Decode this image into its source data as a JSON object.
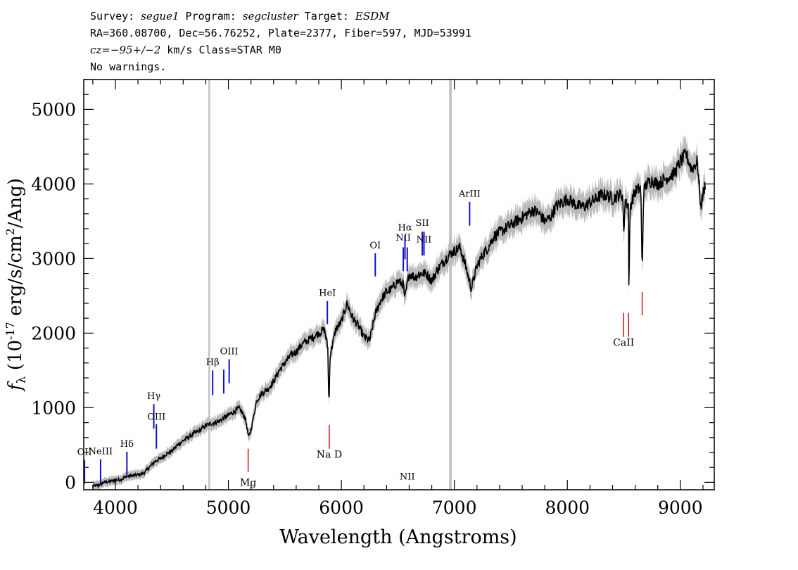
{
  "header": {
    "survey_label": "Survey:",
    "survey": "segue1",
    "program_label": "Program:",
    "program": "segcluster",
    "target_label": "Target:",
    "target": "ESDM",
    "line2": "RA=360.08700, Dec=56.76252, Plate=2377, Fiber=597, MJD=53991",
    "cz_label": "cz=",
    "cz_value": "−95+/−2",
    "cz_rest": " km/s Class=STAR M0",
    "warnings": "No warnings."
  },
  "chart_data": {
    "type": "line",
    "title": "Survey: segue1 Program: segcluster Target: ESDM",
    "xlabel": "Wavelength (Angstroms)",
    "ylabel": "f_λ (10^-17 erg/s/cm^2/Ang)",
    "xlim": [
      3720,
      9300
    ],
    "ylim": [
      -100,
      5400
    ],
    "xticks": [
      4000,
      5000,
      6000,
      7000,
      8000,
      9000
    ],
    "yticks": [
      0,
      1000,
      2000,
      3000,
      4000,
      5000
    ],
    "sky_lines": [
      4830,
      6965
    ],
    "series": [
      {
        "name": "flux",
        "color": "#000000",
        "points": [
          [
            3800,
            -50
          ],
          [
            3850,
            -40
          ],
          [
            3900,
            0
          ],
          [
            3950,
            10
          ],
          [
            4000,
            30
          ],
          [
            4050,
            40
          ],
          [
            4100,
            80
          ],
          [
            4150,
            90
          ],
          [
            4200,
            100
          ],
          [
            4250,
            120
          ],
          [
            4300,
            200
          ],
          [
            4350,
            280
          ],
          [
            4400,
            320
          ],
          [
            4450,
            380
          ],
          [
            4500,
            420
          ],
          [
            4550,
            500
          ],
          [
            4600,
            560
          ],
          [
            4650,
            610
          ],
          [
            4700,
            660
          ],
          [
            4750,
            700
          ],
          [
            4800,
            760
          ],
          [
            4850,
            790
          ],
          [
            4900,
            810
          ],
          [
            4950,
            850
          ],
          [
            5000,
            900
          ],
          [
            5050,
            950
          ],
          [
            5100,
            990
          ],
          [
            5150,
            860
          ],
          [
            5180,
            600
          ],
          [
            5200,
            700
          ],
          [
            5250,
            1100
          ],
          [
            5300,
            1200
          ],
          [
            5350,
            1250
          ],
          [
            5400,
            1350
          ],
          [
            5450,
            1500
          ],
          [
            5500,
            1600
          ],
          [
            5550,
            1700
          ],
          [
            5600,
            1750
          ],
          [
            5650,
            1850
          ],
          [
            5700,
            1900
          ],
          [
            5750,
            1950
          ],
          [
            5800,
            2000
          ],
          [
            5850,
            2050
          ],
          [
            5880,
            1800
          ],
          [
            5890,
            1000
          ],
          [
            5900,
            1700
          ],
          [
            5950,
            2050
          ],
          [
            6000,
            2150
          ],
          [
            6050,
            2400
          ],
          [
            6100,
            2200
          ],
          [
            6150,
            2100
          ],
          [
            6200,
            1950
          ],
          [
            6250,
            1900
          ],
          [
            6300,
            2250
          ],
          [
            6350,
            2450
          ],
          [
            6400,
            2550
          ],
          [
            6450,
            2600
          ],
          [
            6500,
            2700
          ],
          [
            6550,
            2650
          ],
          [
            6560,
            2450
          ],
          [
            6600,
            2800
          ],
          [
            6650,
            2750
          ],
          [
            6700,
            2800
          ],
          [
            6750,
            2800
          ],
          [
            6800,
            2700
          ],
          [
            6850,
            2850
          ],
          [
            6900,
            2950
          ],
          [
            6950,
            3050
          ],
          [
            7000,
            3100
          ],
          [
            7050,
            3150
          ],
          [
            7100,
            2900
          ],
          [
            7150,
            2600
          ],
          [
            7200,
            2900
          ],
          [
            7250,
            3050
          ],
          [
            7300,
            3150
          ],
          [
            7350,
            3300
          ],
          [
            7400,
            3350
          ],
          [
            7450,
            3400
          ],
          [
            7500,
            3450
          ],
          [
            7550,
            3500
          ],
          [
            7600,
            3550
          ],
          [
            7650,
            3600
          ],
          [
            7700,
            3650
          ],
          [
            7750,
            3600
          ],
          [
            7800,
            3500
          ],
          [
            7850,
            3550
          ],
          [
            7900,
            3700
          ],
          [
            7950,
            3750
          ],
          [
            8000,
            3800
          ],
          [
            8050,
            3750
          ],
          [
            8100,
            3700
          ],
          [
            8150,
            3700
          ],
          [
            8200,
            3750
          ],
          [
            8250,
            3800
          ],
          [
            8300,
            3850
          ],
          [
            8350,
            3850
          ],
          [
            8400,
            3800
          ],
          [
            8450,
            3850
          ],
          [
            8490,
            3850
          ],
          [
            8500,
            3300
          ],
          [
            8510,
            3800
          ],
          [
            8540,
            3700
          ],
          [
            8545,
            2450
          ],
          [
            8555,
            3700
          ],
          [
            8600,
            3900
          ],
          [
            8650,
            3950
          ],
          [
            8662,
            2800
          ],
          [
            8675,
            3900
          ],
          [
            8700,
            4000
          ],
          [
            8750,
            4050
          ],
          [
            8800,
            4000
          ],
          [
            8850,
            4050
          ],
          [
            8900,
            4100
          ],
          [
            8950,
            4150
          ],
          [
            9000,
            4300
          ],
          [
            9050,
            4400
          ],
          [
            9100,
            4200
          ],
          [
            9150,
            4300
          ],
          [
            9180,
            3700
          ],
          [
            9220,
            4000
          ]
        ]
      },
      {
        "name": "error band",
        "color": "#bbbbbb"
      }
    ],
    "emission_lines": [
      {
        "label": "OII",
        "wavelength": 3727,
        "y_top": 300,
        "y_bottom": -20,
        "label_y": 330
      },
      {
        "label": "NeIII",
        "wavelength": 3869,
        "y_top": 310,
        "y_bottom": -10,
        "label_y": 340
      },
      {
        "label": "Hδ",
        "wavelength": 4102,
        "y_top": 410,
        "y_bottom": 100,
        "label_y": 440
      },
      {
        "label": "Hγ",
        "wavelength": 4340,
        "y_top": 1050,
        "y_bottom": 720,
        "label_y": 1080
      },
      {
        "label": "OIII",
        "wavelength": 4363,
        "y_top": 780,
        "y_bottom": 450,
        "label_y": 800
      },
      {
        "label": "Hβ",
        "wavelength": 4861,
        "y_top": 1500,
        "y_bottom": 1170,
        "label_y": 1530
      },
      {
        "label": "",
        "wavelength": 4959,
        "y_top": 1510,
        "y_bottom": 1190,
        "label_y": 0
      },
      {
        "label": "OIII",
        "wavelength": 5007,
        "y_top": 1650,
        "y_bottom": 1330,
        "label_y": 1680
      },
      {
        "label": "HeI",
        "wavelength": 5876,
        "y_top": 2430,
        "y_bottom": 2120,
        "label_y": 2460
      },
      {
        "label": "OI",
        "wavelength": 6300,
        "y_top": 3070,
        "y_bottom": 2760,
        "label_y": 3100
      },
      {
        "label": "NII",
        "wavelength": 6548,
        "y_top": 3150,
        "y_bottom": 2830,
        "label_y": 3200
      },
      {
        "label": "Hα",
        "wavelength": 6563,
        "y_top": 3310,
        "y_bottom": 2990,
        "label_y": 3340
      },
      {
        "label": "NII",
        "wavelength": 6583,
        "y_top": 3150,
        "y_bottom": 2830,
        "label_y": 0
      },
      {
        "label": "SII",
        "wavelength": 6716,
        "y_top": 3360,
        "y_bottom": 3040,
        "label_y": 3400
      },
      {
        "label": "NII",
        "wavelength": 6731,
        "y_top": 3360,
        "y_bottom": 3040,
        "label_y": 3180
      },
      {
        "label": "ArIII",
        "wavelength": 7135,
        "y_top": 3760,
        "y_bottom": 3440,
        "label_y": 3790
      }
    ],
    "absorption_lines": [
      {
        "label": "Mg",
        "wavelength": 5175,
        "y_top": 450,
        "y_bottom": 140,
        "label_y": -50
      },
      {
        "label": "Na D",
        "wavelength": 5893,
        "y_top": 770,
        "y_bottom": 450,
        "label_y": 330
      },
      {
        "label": "CaII",
        "wavelength": 8498,
        "y_top": 2270,
        "y_bottom": 1950,
        "label_y": 1830
      },
      {
        "label": "",
        "wavelength": 8542,
        "y_top": 2270,
        "y_bottom": 1950,
        "label_y": 0
      },
      {
        "label": "",
        "wavelength": 8662,
        "y_top": 2550,
        "y_bottom": 2240,
        "label_y": 0
      }
    ]
  }
}
